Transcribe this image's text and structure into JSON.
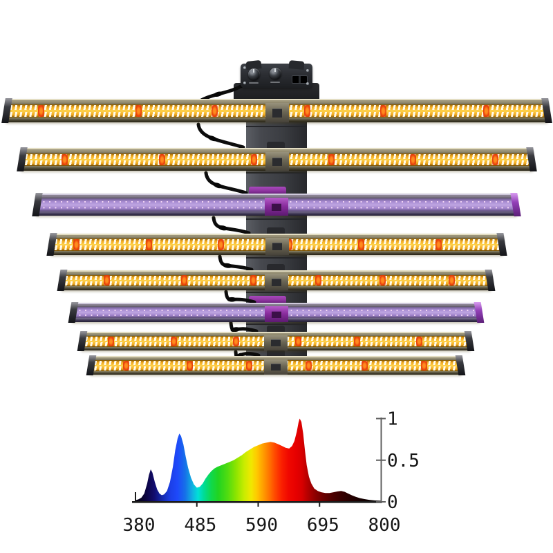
{
  "fixture": {
    "bar_count": 8,
    "bars": [
      {
        "type": "white-red"
      },
      {
        "type": "white-red"
      },
      {
        "type": "uv"
      },
      {
        "type": "white-red"
      },
      {
        "type": "white-red"
      },
      {
        "type": "uv"
      },
      {
        "type": "white-red"
      },
      {
        "type": "white-red"
      }
    ],
    "controller": {
      "knobs": [
        "left-dimmer-knob",
        "right-dimmer-knob"
      ],
      "port": "output-port"
    },
    "colors": {
      "warm_led_glow": "#ffd44f",
      "led_chip": "#fffdf0",
      "red_led": "#e63a08",
      "uv_strip": "#bfa6e2",
      "uv_dot": "#f7daf5",
      "bar_frame": "#9c957a",
      "uv_accent": "#8f35a0",
      "rail": "#3f4147",
      "controller_body": "#2c2e33",
      "cable": "#0d0d0d"
    }
  },
  "chart_data": {
    "type": "area",
    "title": "",
    "xlabel": "",
    "ylabel": "",
    "xlim": [
      380,
      800
    ],
    "ylim": [
      0,
      1
    ],
    "grid": false,
    "legend": false,
    "y_axis_side": "right",
    "x_ticks": [
      380,
      485,
      590,
      695,
      800
    ],
    "x_tick_labels": [
      "380",
      "485",
      "590",
      "695",
      "800"
    ],
    "y_ticks": [
      1,
      0.5,
      0
    ],
    "y_tick_labels": [
      "1",
      "0.5",
      "0"
    ],
    "x": [
      380,
      385,
      390,
      395,
      400,
      403,
      406,
      409,
      413,
      417,
      421,
      425,
      429,
      434,
      439,
      444,
      448,
      452,
      455,
      458,
      462,
      466,
      470,
      475,
      480,
      485,
      490,
      495,
      500,
      505,
      510,
      515,
      520,
      527,
      534,
      541,
      548,
      555,
      562,
      569,
      576,
      583,
      590,
      597,
      604,
      611,
      618,
      625,
      631,
      637,
      643,
      648,
      652,
      656,
      659,
      661,
      664,
      667,
      670,
      673,
      677,
      681,
      686,
      692,
      698,
      705,
      712,
      719,
      726,
      732,
      738,
      744,
      750,
      757,
      764,
      772,
      780,
      790,
      800
    ],
    "values": [
      0.02,
      0.03,
      0.05,
      0.1,
      0.22,
      0.32,
      0.39,
      0.35,
      0.24,
      0.15,
      0.1,
      0.08,
      0.09,
      0.13,
      0.24,
      0.42,
      0.62,
      0.76,
      0.82,
      0.79,
      0.69,
      0.54,
      0.41,
      0.29,
      0.21,
      0.17,
      0.18,
      0.22,
      0.28,
      0.33,
      0.37,
      0.4,
      0.42,
      0.44,
      0.46,
      0.48,
      0.5,
      0.53,
      0.56,
      0.6,
      0.63,
      0.66,
      0.68,
      0.7,
      0.71,
      0.72,
      0.71,
      0.69,
      0.67,
      0.65,
      0.64,
      0.67,
      0.73,
      0.84,
      0.95,
      1.0,
      0.96,
      0.82,
      0.62,
      0.44,
      0.3,
      0.22,
      0.16,
      0.13,
      0.115,
      0.105,
      0.105,
      0.115,
      0.125,
      0.13,
      0.12,
      0.1,
      0.08,
      0.06,
      0.045,
      0.033,
      0.024,
      0.017,
      0.013
    ],
    "gradient": [
      [
        380,
        "#030008"
      ],
      [
        398,
        "#0b0340"
      ],
      [
        412,
        "#120c6e"
      ],
      [
        425,
        "#1428a8"
      ],
      [
        440,
        "#1c3fe8"
      ],
      [
        452,
        "#1e49fa"
      ],
      [
        465,
        "#1670e8"
      ],
      [
        478,
        "#10b4e0"
      ],
      [
        487,
        "#00e0d8"
      ],
      [
        497,
        "#00dc96"
      ],
      [
        510,
        "#10d84a"
      ],
      [
        522,
        "#22d420"
      ],
      [
        538,
        "#52dc10"
      ],
      [
        552,
        "#8ce400"
      ],
      [
        566,
        "#c8ec00"
      ],
      [
        578,
        "#f0e800"
      ],
      [
        588,
        "#ffc800"
      ],
      [
        598,
        "#ffa000"
      ],
      [
        608,
        "#ff7800"
      ],
      [
        618,
        "#ff4c00"
      ],
      [
        630,
        "#fa2000"
      ],
      [
        642,
        "#f00800"
      ],
      [
        655,
        "#e60000"
      ],
      [
        665,
        "#d80000"
      ],
      [
        675,
        "#b40000"
      ],
      [
        688,
        "#8c0000"
      ],
      [
        700,
        "#6e0000"
      ],
      [
        715,
        "#500000"
      ],
      [
        730,
        "#3a0000"
      ],
      [
        748,
        "#260000"
      ],
      [
        765,
        "#160000"
      ],
      [
        782,
        "#0b0000"
      ],
      [
        800,
        "#050000"
      ]
    ]
  }
}
